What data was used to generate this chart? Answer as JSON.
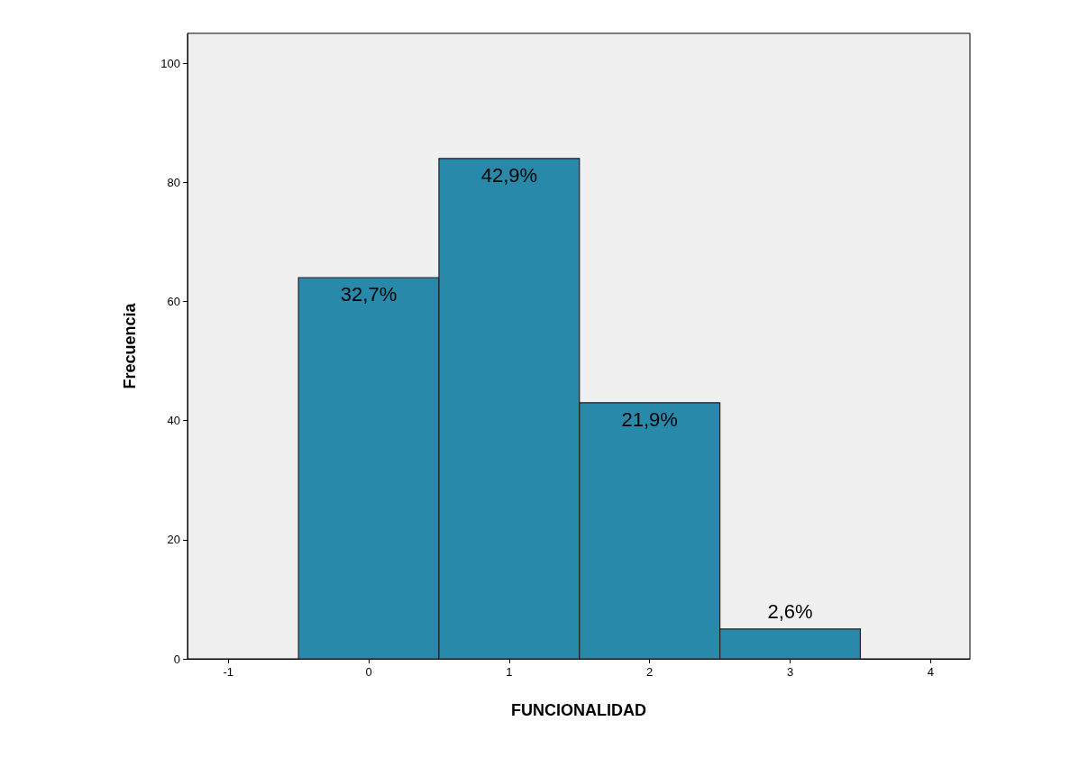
{
  "chart_data": {
    "type": "histogram",
    "xlabel": "FUNCIONALIDAD",
    "ylabel": "Frecuencia",
    "bins": [
      -0.5,
      0.5,
      1.5,
      2.5,
      3.5
    ],
    "values": [
      64,
      84,
      43,
      5
    ],
    "annotations": [
      {
        "text": "32,7%",
        "x": 0,
        "y": 64
      },
      {
        "text": "42,9%",
        "x": 1,
        "y": 84
      },
      {
        "text": "21,9%",
        "x": 2,
        "y": 43
      },
      {
        "text": "2,6%",
        "x": 3,
        "y": 5
      }
    ],
    "color": "#2889ab",
    "xlim": [
      -1.29,
      4.28
    ],
    "xticks": [
      -1,
      0,
      1,
      2,
      3,
      4
    ],
    "ylim": [
      0,
      105
    ],
    "yticks": [
      0,
      20,
      40,
      60,
      80,
      100
    ],
    "grid": false
  }
}
